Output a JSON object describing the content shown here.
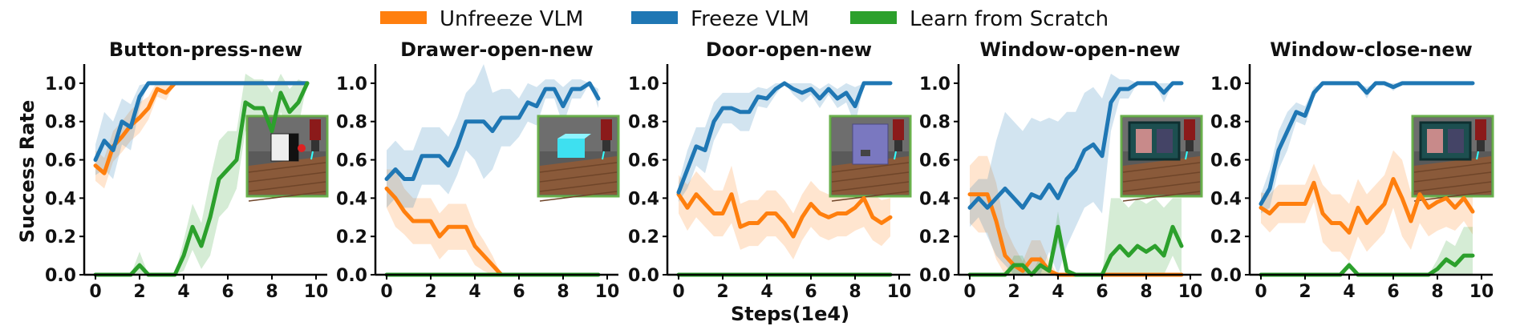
{
  "legend": [
    {
      "label": "Unfreeze VLM",
      "color": "#ff7f0e"
    },
    {
      "label": "Freeze VLM",
      "color": "#1f77b4"
    },
    {
      "label": "Learn from Scratch",
      "color": "#2ca02c"
    }
  ],
  "shared_xlabel": "Steps(1e4)",
  "shared_ylabel": "Success Rate",
  "chart_data": [
    {
      "type": "line",
      "title": "Button-press-new",
      "xlim": [
        0,
        10
      ],
      "ylim": [
        0,
        1.1
      ],
      "xticks": [
        "0",
        "2",
        "4",
        "6",
        "8",
        "10"
      ],
      "yticks": [
        "0.0",
        "0.2",
        "0.4",
        "0.6",
        "0.8",
        "1.0"
      ],
      "scene_image": "button-press",
      "x": [
        0,
        0.4,
        0.8,
        1.2,
        1.6,
        2.0,
        2.4,
        2.8,
        3.2,
        3.6,
        4.0,
        4.4,
        4.8,
        5.2,
        5.6,
        6.0,
        6.4,
        6.8,
        7.2,
        7.6,
        8.0,
        8.4,
        8.8,
        9.2,
        9.6
      ],
      "series": [
        {
          "name": "Unfreeze VLM",
          "color": "#ff7f0e",
          "values": [
            0.57,
            0.53,
            0.67,
            0.72,
            0.78,
            0.82,
            0.87,
            0.97,
            0.95,
            1.0,
            1.0,
            1.0,
            1.0,
            1.0,
            1.0,
            1.0,
            1.0,
            1.0,
            1.0,
            1.0,
            1.0,
            1.0,
            1.0,
            1.0,
            1.0
          ],
          "band": [
            0.08,
            0.08,
            0.08,
            0.08,
            0.08,
            0.08,
            0.06,
            0.04,
            0.04,
            0,
            0,
            0,
            0,
            0,
            0,
            0,
            0,
            0,
            0,
            0,
            0,
            0,
            0,
            0,
            0
          ]
        },
        {
          "name": "Freeze VLM",
          "color": "#1f77b4",
          "values": [
            0.6,
            0.7,
            0.65,
            0.8,
            0.77,
            0.93,
            1.0,
            1.0,
            1.0,
            1.0,
            1.0,
            1.0,
            1.0,
            1.0,
            1.0,
            1.0,
            1.0,
            1.0,
            1.0,
            1.0,
            1.0,
            1.0,
            1.0,
            1.0,
            1.0
          ],
          "band": [
            0.08,
            0.15,
            0.15,
            0.12,
            0.12,
            0.06,
            0,
            0,
            0,
            0,
            0,
            0,
            0,
            0,
            0,
            0,
            0,
            0,
            0,
            0,
            0,
            0,
            0,
            0,
            0
          ]
        },
        {
          "name": "Learn from Scratch",
          "color": "#2ca02c",
          "values": [
            0,
            0,
            0,
            0,
            0,
            0.05,
            0,
            0,
            0,
            0,
            0.1,
            0.25,
            0.15,
            0.3,
            0.5,
            0.55,
            0.6,
            0.9,
            0.87,
            0.87,
            0.75,
            0.95,
            0.85,
            0.9,
            1.0
          ],
          "band": [
            0,
            0,
            0,
            0,
            0,
            0.07,
            0,
            0,
            0,
            0,
            0.08,
            0.12,
            0.12,
            0.2,
            0.2,
            0.2,
            0.15,
            0.15,
            0.15,
            0.15,
            0.2,
            0.1,
            0.12,
            0.12,
            0
          ]
        }
      ]
    },
    {
      "type": "line",
      "title": "Drawer-open-new",
      "xlim": [
        0,
        10
      ],
      "ylim": [
        0,
        1.1
      ],
      "xticks": [
        "0",
        "2",
        "4",
        "6",
        "8",
        "10"
      ],
      "yticks": [
        "0.0",
        "0.2",
        "0.4",
        "0.6",
        "0.8",
        "1.0"
      ],
      "scene_image": "drawer-open",
      "x": [
        0,
        0.4,
        0.8,
        1.2,
        1.6,
        2.0,
        2.4,
        2.8,
        3.2,
        3.6,
        4.0,
        4.4,
        4.8,
        5.2,
        5.6,
        6.0,
        6.4,
        6.8,
        7.2,
        7.6,
        8.0,
        8.4,
        8.8,
        9.2,
        9.6
      ],
      "series": [
        {
          "name": "Unfreeze VLM",
          "color": "#ff7f0e",
          "values": [
            0.45,
            0.4,
            0.33,
            0.28,
            0.28,
            0.28,
            0.2,
            0.25,
            0.25,
            0.25,
            0.15,
            0.1,
            0.05,
            0.0,
            null,
            null,
            null,
            null,
            null,
            null,
            null,
            null,
            null,
            null,
            null
          ],
          "band": [
            0.1,
            0.15,
            0.12,
            0.12,
            0.12,
            0.12,
            0.12,
            0.12,
            0.12,
            0.12,
            0.1,
            0.08,
            0.05,
            0,
            0,
            0,
            0,
            0,
            0,
            0,
            0,
            0,
            0,
            0,
            0
          ]
        },
        {
          "name": "Freeze VLM",
          "color": "#1f77b4",
          "values": [
            0.5,
            0.55,
            0.5,
            0.5,
            0.62,
            0.62,
            0.62,
            0.57,
            0.67,
            0.8,
            0.8,
            0.8,
            0.75,
            0.82,
            0.82,
            0.82,
            0.9,
            0.88,
            0.97,
            0.97,
            0.88,
            0.97,
            0.97,
            1.0,
            0.92
          ],
          "band": [
            0.15,
            0.15,
            0.15,
            0.15,
            0.15,
            0.15,
            0.15,
            0.15,
            0.15,
            0.15,
            0.2,
            0.3,
            0.2,
            0.15,
            0.15,
            0.1,
            0.1,
            0.1,
            0.05,
            0.05,
            0.1,
            0.05,
            0.05,
            0,
            0.05
          ]
        },
        {
          "name": "Learn from Scratch",
          "color": "#2ca02c",
          "values": [
            0,
            0,
            0,
            0,
            0,
            0,
            0,
            0,
            0,
            0,
            0,
            0,
            0,
            0,
            0,
            0,
            0,
            0,
            0,
            0,
            0,
            0,
            0,
            0,
            0
          ],
          "band": [
            0,
            0,
            0,
            0,
            0,
            0,
            0,
            0,
            0,
            0,
            0,
            0,
            0,
            0,
            0,
            0,
            0,
            0,
            0,
            0,
            0,
            0,
            0,
            0,
            0
          ]
        }
      ]
    },
    {
      "type": "line",
      "title": "Door-open-new",
      "xlim": [
        0,
        10
      ],
      "ylim": [
        0,
        1.1
      ],
      "xticks": [
        "0",
        "2",
        "4",
        "6",
        "8",
        "10"
      ],
      "yticks": [
        "0.0",
        "0.2",
        "0.4",
        "0.6",
        "0.8",
        "1.0"
      ],
      "scene_image": "door-open",
      "x": [
        0,
        0.4,
        0.8,
        1.2,
        1.6,
        2.0,
        2.4,
        2.8,
        3.2,
        3.6,
        4.0,
        4.4,
        4.8,
        5.2,
        5.6,
        6.0,
        6.4,
        6.8,
        7.2,
        7.6,
        8.0,
        8.4,
        8.8,
        9.2,
        9.6
      ],
      "series": [
        {
          "name": "Unfreeze VLM",
          "color": "#ff7f0e",
          "values": [
            0.42,
            0.35,
            0.42,
            0.37,
            0.32,
            0.32,
            0.42,
            0.25,
            0.27,
            0.27,
            0.32,
            0.32,
            0.27,
            0.2,
            0.3,
            0.37,
            0.32,
            0.3,
            0.32,
            0.32,
            0.35,
            0.4,
            0.3,
            0.27,
            0.3
          ],
          "band": [
            0.1,
            0.12,
            0.12,
            0.12,
            0.12,
            0.12,
            0.15,
            0.12,
            0.12,
            0.12,
            0.12,
            0.12,
            0.12,
            0.12,
            0.12,
            0.12,
            0.12,
            0.12,
            0.12,
            0.12,
            0.12,
            0.15,
            0.12,
            0.12,
            0.1
          ]
        },
        {
          "name": "Freeze VLM",
          "color": "#1f77b4",
          "values": [
            0.43,
            0.55,
            0.67,
            0.65,
            0.8,
            0.87,
            0.87,
            0.85,
            0.85,
            0.93,
            0.92,
            0.97,
            1.0,
            0.97,
            0.95,
            0.97,
            0.92,
            0.97,
            0.92,
            0.95,
            0.88,
            1.0,
            1.0,
            1.0,
            1.0
          ],
          "band": [
            0.05,
            0.1,
            0.1,
            0.12,
            0.1,
            0.08,
            0.08,
            0.1,
            0.1,
            0.05,
            0.05,
            0.03,
            0,
            0.03,
            0.05,
            0.03,
            0.05,
            0.03,
            0.05,
            0.05,
            0.1,
            0,
            0,
            0,
            0
          ]
        },
        {
          "name": "Learn from Scratch",
          "color": "#2ca02c",
          "values": [
            0,
            0,
            0,
            0,
            0,
            0,
            0,
            0,
            0,
            0,
            0,
            0,
            0,
            0,
            0,
            0,
            0,
            0,
            0,
            0,
            0,
            0,
            0,
            0,
            0
          ],
          "band": [
            0,
            0,
            0,
            0,
            0,
            0,
            0,
            0,
            0,
            0,
            0,
            0,
            0,
            0,
            0,
            0,
            0,
            0,
            0,
            0,
            0,
            0,
            0,
            0,
            0
          ]
        }
      ]
    },
    {
      "type": "line",
      "title": "Window-open-new",
      "xlim": [
        0,
        10
      ],
      "ylim": [
        0,
        1.1
      ],
      "xticks": [
        "0",
        "2",
        "4",
        "6",
        "8",
        "10"
      ],
      "yticks": [
        "0.0",
        "0.2",
        "0.4",
        "0.6",
        "0.8",
        "1.0"
      ],
      "scene_image": "window-open",
      "x": [
        0,
        0.4,
        0.8,
        1.2,
        1.6,
        2.0,
        2.4,
        2.8,
        3.2,
        3.6,
        4.0,
        4.4,
        4.8,
        5.2,
        5.6,
        6.0,
        6.4,
        6.8,
        7.2,
        7.6,
        8.0,
        8.4,
        8.8,
        9.2,
        9.6
      ],
      "series": [
        {
          "name": "Unfreeze VLM",
          "color": "#ff7f0e",
          "values": [
            0.42,
            0.42,
            0.42,
            0.28,
            0.1,
            0.05,
            0.02,
            0.08,
            0.08,
            0.02,
            0.0,
            0.0,
            0.0,
            0.0,
            0.0,
            0.0,
            0.0,
            0.0,
            0.0,
            0.0,
            0.0,
            0.0,
            0.0,
            0.0,
            0.0
          ],
          "band": [
            0.15,
            0.2,
            0.2,
            0.2,
            0.15,
            0.1,
            0.05,
            0.1,
            0.1,
            0.05,
            0,
            0,
            0,
            0,
            0,
            0,
            0,
            0,
            0,
            0,
            0,
            0,
            0,
            0,
            0
          ]
        },
        {
          "name": "Freeze VLM",
          "color": "#1f77b4",
          "values": [
            0.35,
            0.4,
            0.35,
            0.4,
            0.45,
            0.4,
            0.35,
            0.42,
            0.4,
            0.47,
            0.4,
            0.5,
            0.55,
            0.65,
            0.68,
            0.62,
            0.9,
            0.97,
            0.97,
            1.0,
            1.0,
            1.0,
            0.95,
            1.0,
            1.0
          ],
          "band": [
            0.1,
            0.1,
            0.15,
            0.3,
            0.4,
            0.4,
            0.4,
            0.4,
            0.4,
            0.35,
            0.4,
            0.35,
            0.3,
            0.3,
            0.3,
            0.3,
            0.15,
            0.05,
            0.05,
            0,
            0,
            0,
            0.05,
            0,
            0
          ]
        },
        {
          "name": "Learn from Scratch",
          "color": "#2ca02c",
          "values": [
            0,
            0,
            0,
            0,
            0,
            0.05,
            0.05,
            0.0,
            0.05,
            0.02,
            0.25,
            0.02,
            0,
            0,
            0,
            0,
            0.1,
            0.15,
            0.1,
            0.15,
            0.12,
            0.15,
            0.1,
            0.25,
            0.15
          ],
          "band": [
            0,
            0,
            0,
            0,
            0,
            0.05,
            0.05,
            0,
            0.05,
            0.02,
            0.08,
            0.02,
            0,
            0,
            0,
            0,
            0.3,
            0.25,
            0.25,
            0.25,
            0.25,
            0.25,
            0.25,
            0.15,
            0.25
          ]
        }
      ]
    },
    {
      "type": "line",
      "title": "Window-close-new",
      "xlim": [
        0,
        10
      ],
      "ylim": [
        0,
        1.1
      ],
      "xticks": [
        "0",
        "2",
        "4",
        "6",
        "8",
        "10"
      ],
      "yticks": [
        "0.0",
        "0.2",
        "0.4",
        "0.6",
        "0.8",
        "1.0"
      ],
      "scene_image": "window-close",
      "x": [
        0,
        0.4,
        0.8,
        1.2,
        1.6,
        2.0,
        2.4,
        2.8,
        3.2,
        3.6,
        4.0,
        4.4,
        4.8,
        5.2,
        5.6,
        6.0,
        6.4,
        6.8,
        7.2,
        7.6,
        8.0,
        8.4,
        8.8,
        9.2,
        9.6
      ],
      "series": [
        {
          "name": "Unfreeze VLM",
          "color": "#ff7f0e",
          "values": [
            0.35,
            0.32,
            0.37,
            0.37,
            0.37,
            0.37,
            0.48,
            0.32,
            0.27,
            0.27,
            0.22,
            0.35,
            0.27,
            0.32,
            0.37,
            0.5,
            0.4,
            0.28,
            0.42,
            0.35,
            0.38,
            0.4,
            0.35,
            0.4,
            0.33
          ],
          "band": [
            0.08,
            0.1,
            0.1,
            0.1,
            0.1,
            0.1,
            0.1,
            0.15,
            0.15,
            0.15,
            0.15,
            0.15,
            0.15,
            0.15,
            0.15,
            0.15,
            0.2,
            0.15,
            0.15,
            0.15,
            0.15,
            0.15,
            0.12,
            0.12,
            0.12
          ]
        },
        {
          "name": "Freeze VLM",
          "color": "#1f77b4",
          "values": [
            0.37,
            0.45,
            0.65,
            0.75,
            0.85,
            0.83,
            0.95,
            1.0,
            1.0,
            1.0,
            1.0,
            1.0,
            0.95,
            1.0,
            1.0,
            0.98,
            1.0,
            1.0,
            1.0,
            1.0,
            1.0,
            1.0,
            1.0,
            1.0,
            1.0
          ],
          "band": [
            0.05,
            0.1,
            0.1,
            0.1,
            0.05,
            0.05,
            0.03,
            0,
            0,
            0,
            0,
            0,
            0.03,
            0,
            0,
            0.02,
            0,
            0,
            0,
            0,
            0,
            0,
            0,
            0,
            0
          ]
        },
        {
          "name": "Learn from Scratch",
          "color": "#2ca02c",
          "values": [
            0,
            0,
            0,
            0,
            0,
            0,
            0,
            0,
            0,
            0,
            0.05,
            0,
            0,
            0,
            0,
            0,
            0,
            0,
            0,
            0,
            0.03,
            0.08,
            0.05,
            0.1,
            0.1
          ],
          "band": [
            0,
            0,
            0,
            0,
            0,
            0,
            0,
            0,
            0,
            0,
            0.02,
            0,
            0,
            0,
            0,
            0,
            0,
            0,
            0,
            0,
            0.05,
            0.1,
            0.1,
            0.15,
            0.15
          ]
        }
      ]
    }
  ]
}
